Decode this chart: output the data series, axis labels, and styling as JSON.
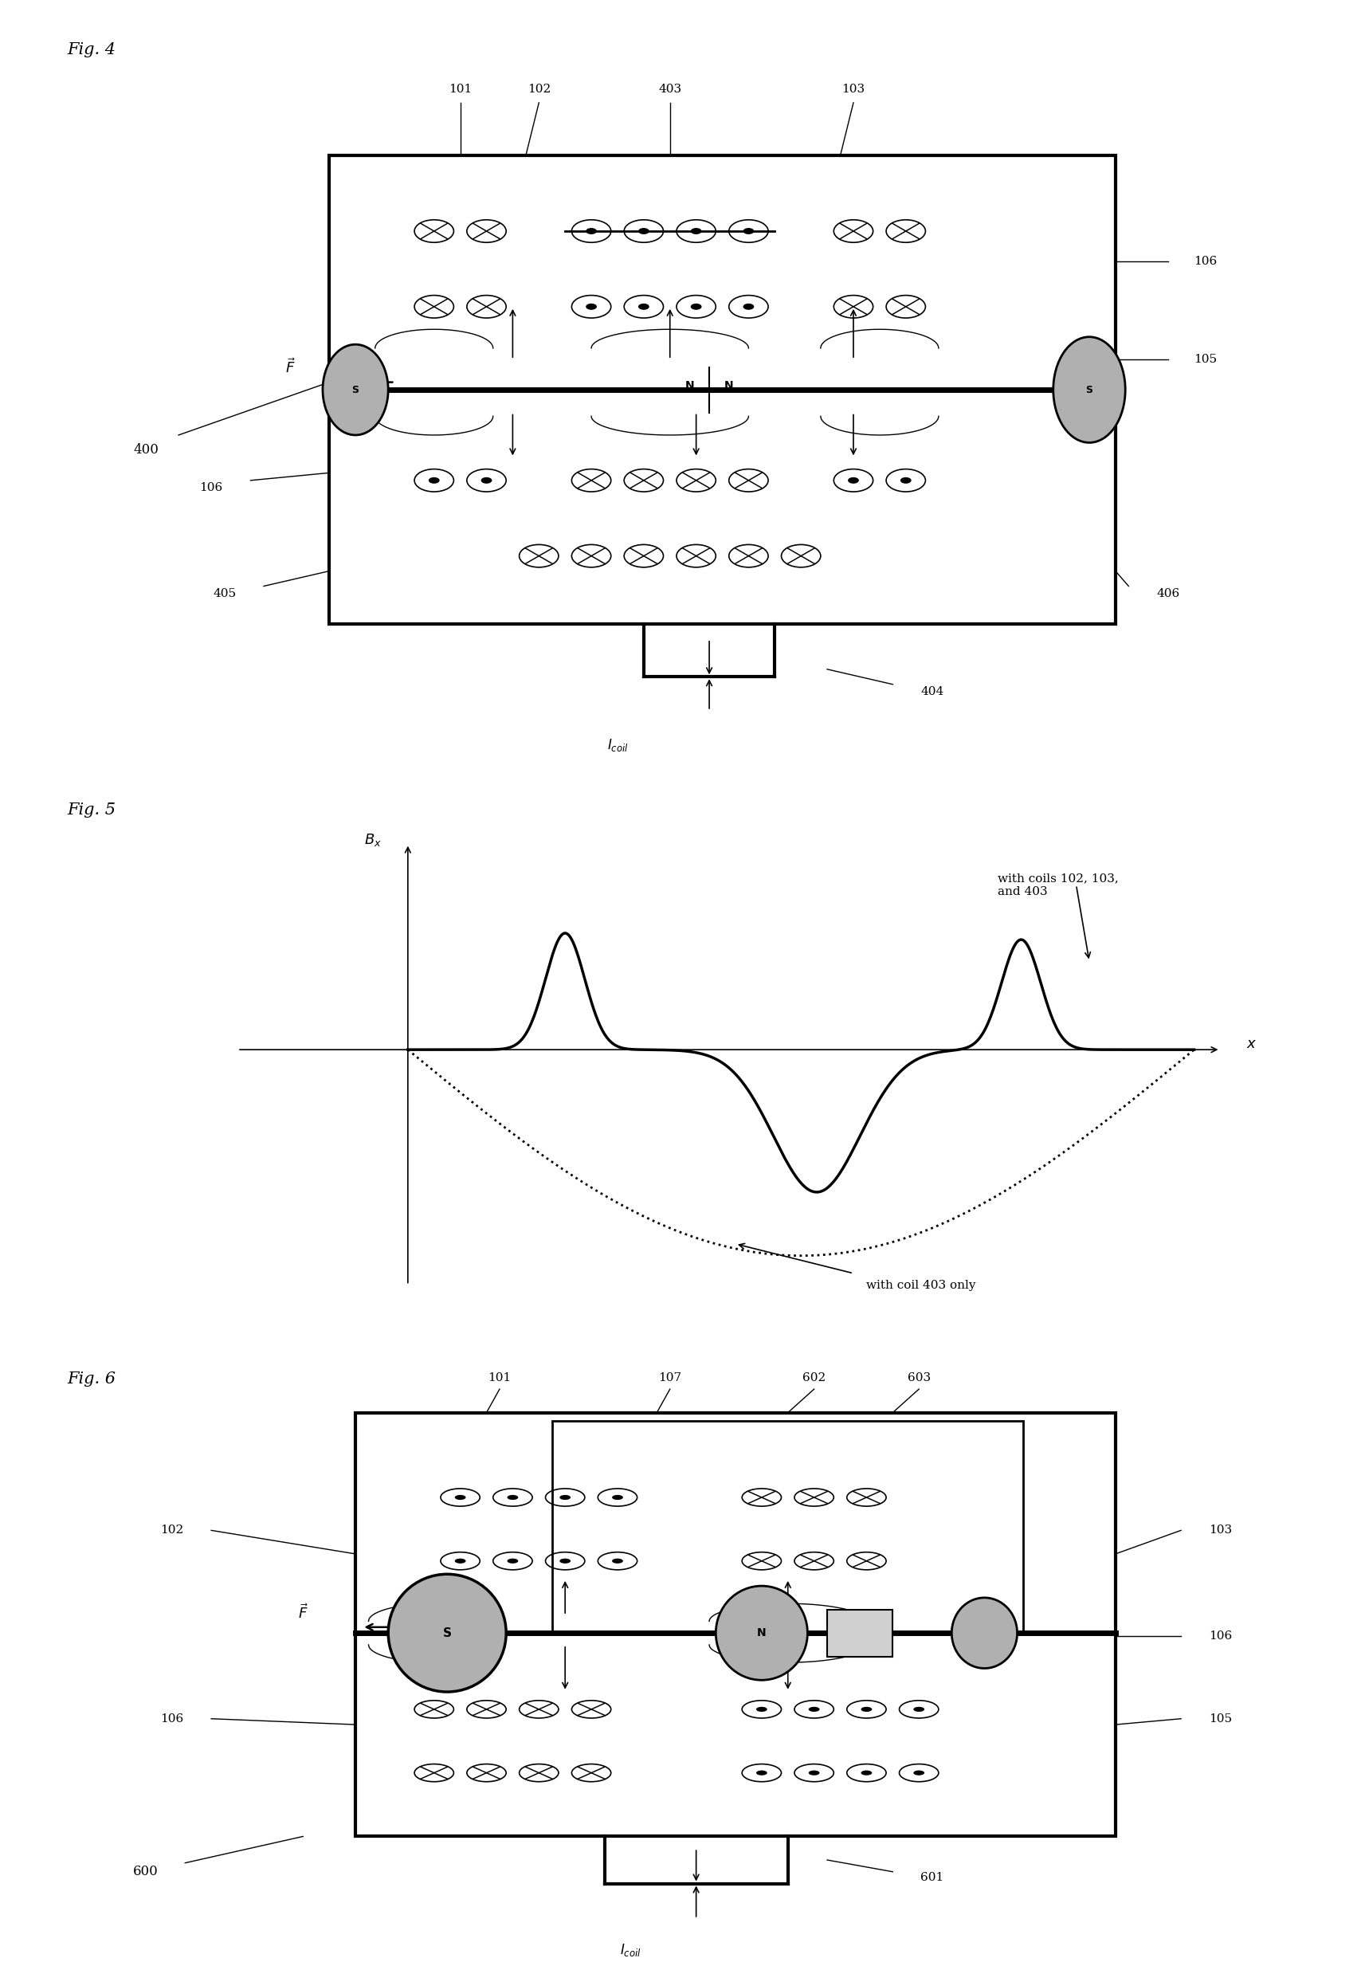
{
  "background_color": "#ffffff",
  "fig4": {
    "label": "Fig. 4",
    "ref_number": "400",
    "labels_top": [
      "101",
      "102",
      "403",
      "103"
    ],
    "label_106_right": "106",
    "label_105": "105",
    "label_106_left": "106",
    "labels_bottom": [
      "405",
      "406",
      "404"
    ],
    "Icoil": "I_coil"
  },
  "fig5": {
    "label": "Fig. 5",
    "ylabel": "B_x",
    "xlabel": "x",
    "annotation1": "with coils 102, 103,\nand 403",
    "annotation2": "with coil 403 only"
  },
  "fig6": {
    "label": "Fig. 6",
    "ref_number": "600",
    "labels_top": [
      "101",
      "107",
      "602",
      "603"
    ],
    "label_102": "102",
    "label_103": "103",
    "label_105": "105",
    "label_106_left": "106",
    "label_106_right": "106",
    "label_601": "601",
    "Icoil": "I_coil"
  }
}
